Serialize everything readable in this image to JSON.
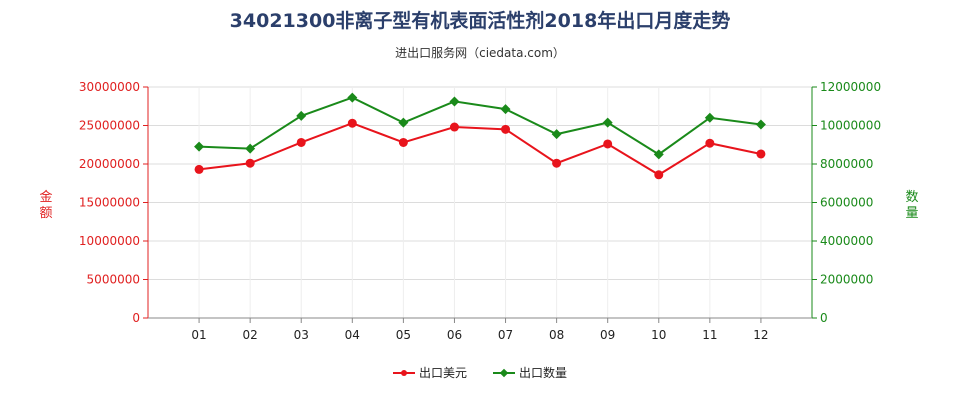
{
  "title": "34021300非离子型有机表面活性剂2018年出口月度走势",
  "subtitle": "进出口服务网（ciedata.com）",
  "chart_data": {
    "type": "line",
    "categories": [
      "01",
      "02",
      "03",
      "04",
      "05",
      "06",
      "07",
      "08",
      "09",
      "10",
      "11",
      "12"
    ],
    "series": [
      {
        "name": "出口美元",
        "axis": "left",
        "color": "#e8141c",
        "marker": "circle",
        "values": [
          19300000,
          20100000,
          22800000,
          25300000,
          22800000,
          24800000,
          24500000,
          20100000,
          22600000,
          18600000,
          22700000,
          21300000
        ]
      },
      {
        "name": "出口数量",
        "axis": "right",
        "color": "#1a8a1a",
        "marker": "diamond",
        "values": [
          8900000,
          8800000,
          10500000,
          11450000,
          10150000,
          11250000,
          10850000,
          9550000,
          10150000,
          8500000,
          10400000,
          10050000
        ]
      }
    ],
    "ylabel_left": "金额",
    "ylabel_right": "数量",
    "ylim_left": [
      0,
      30000000
    ],
    "ylim_right": [
      0,
      12000000
    ],
    "yticks_left": [
      "0",
      "5000000",
      "10000000",
      "15000000",
      "20000000",
      "25000000",
      "30000000"
    ],
    "yticks_right": [
      "0",
      "2000000",
      "4000000",
      "6000000",
      "8000000",
      "10000000",
      "12000000"
    ],
    "left_axis_color": "#e02020",
    "right_axis_color": "#1a8a1a",
    "grid": "horizontal",
    "legend_position": "bottom"
  }
}
